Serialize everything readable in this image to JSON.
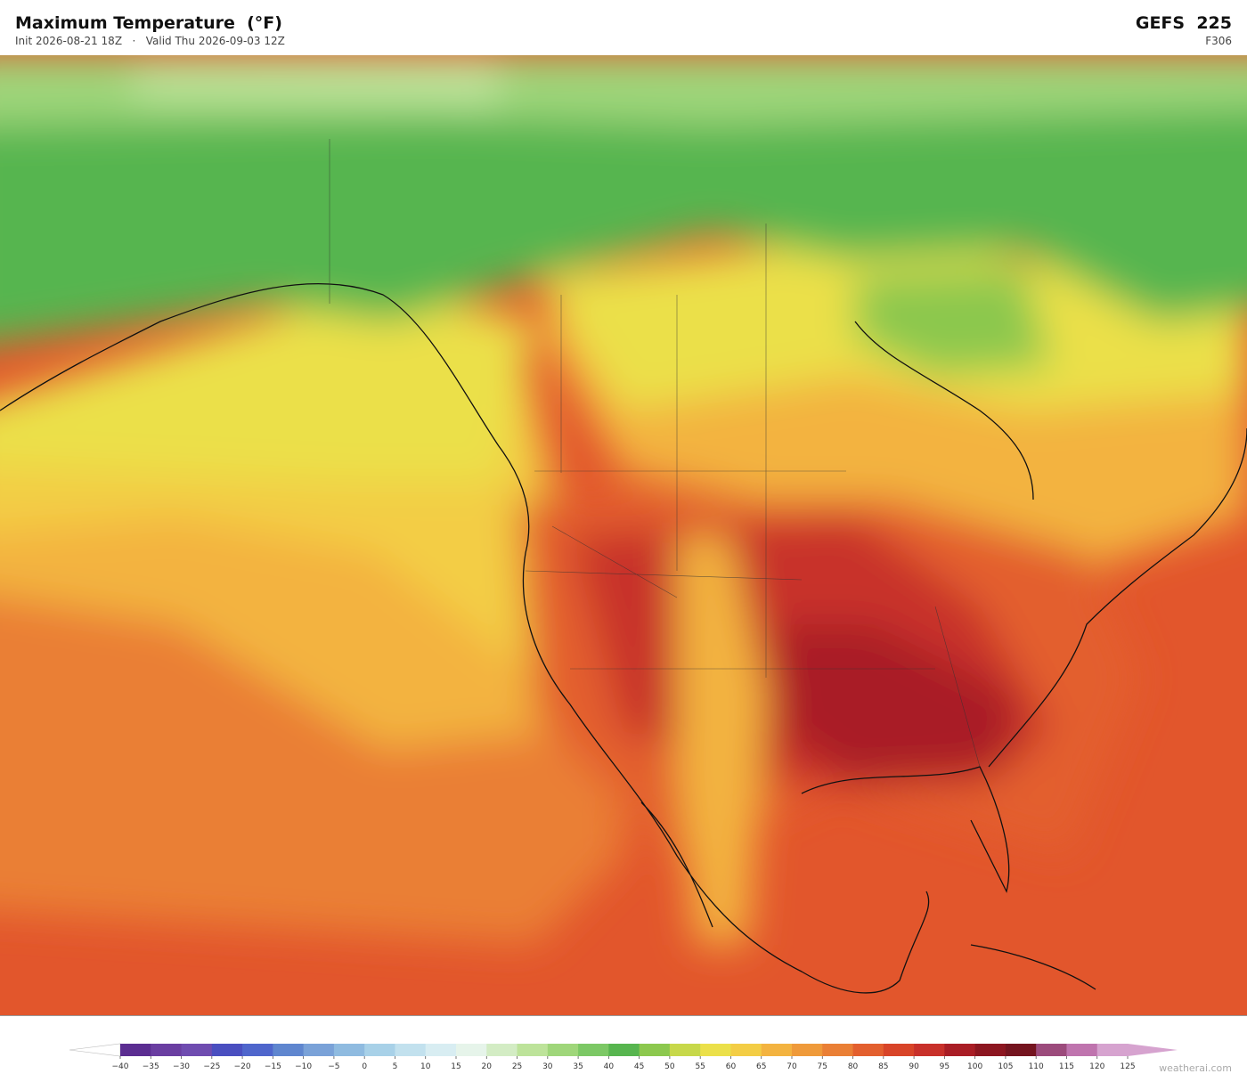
{
  "header": {
    "title": "Maximum Temperature  (°F)",
    "subtitle": "Init 2026-08-21 18Z   ·   Valid Thu 2026-09-03 12Z",
    "model": "GEFS  225",
    "forecast_hour": "F306"
  },
  "colorbar": {
    "ticks": [
      {
        "value": -40,
        "label": "−40"
      },
      {
        "value": -35,
        "label": "−35"
      },
      {
        "value": -30,
        "label": "−30"
      },
      {
        "value": -25,
        "label": "−25"
      },
      {
        "value": -20,
        "label": "−20"
      },
      {
        "value": -15,
        "label": "−15"
      },
      {
        "value": -10,
        "label": "−10"
      },
      {
        "value": -5,
        "label": "−5"
      },
      0,
      5,
      10,
      15,
      20,
      25,
      30,
      35,
      40,
      45,
      50,
      55,
      60,
      65,
      70,
      75,
      80,
      85,
      90,
      95,
      100,
      105,
      110,
      115,
      120,
      125
    ],
    "colors": [
      "#5b2d91",
      "#6a3ea1",
      "#6f4cb0",
      "#4a4fc0",
      "#4f66cc",
      "#5f86cf",
      "#7aa2d8",
      "#8fbbe0",
      "#a8d1e8",
      "#c2e1ee",
      "#d8edf2",
      "#e6f4ea",
      "#d3ecc4",
      "#bde39a",
      "#9fd67a",
      "#7cc865",
      "#57b54f",
      "#8cc84e",
      "#c7d84a",
      "#ebe04a",
      "#f3cd45",
      "#f3b340",
      "#ef9a3a",
      "#ea7f35",
      "#e35f2e",
      "#d84428",
      "#c8302a",
      "#a91d25",
      "#8c1620",
      "#74141f",
      "#9c4b7c",
      "#bf74ae",
      "#d6a3cf"
    ],
    "under_color": "#ffffff",
    "over_color": "#d6a3cf"
  },
  "footer": {
    "credit": "weatherai.com"
  }
}
